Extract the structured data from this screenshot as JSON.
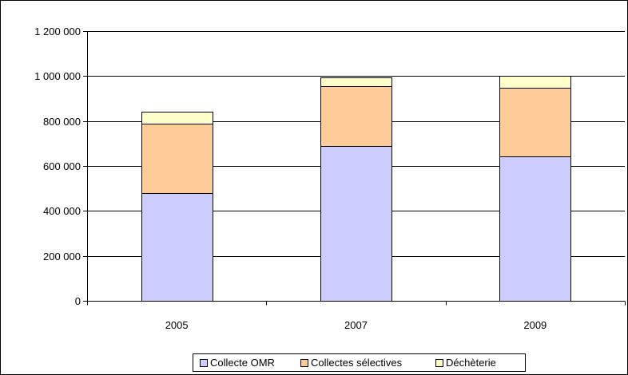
{
  "chart_data": {
    "type": "bar",
    "stacked": true,
    "categories": [
      "2005",
      "2007",
      "2009"
    ],
    "series": [
      {
        "name": "Collecte OMR",
        "color": "#ccccff",
        "values": [
          480000,
          690000,
          643000
        ]
      },
      {
        "name": "Collectes sélectives",
        "color": "#ffcc99",
        "values": [
          307000,
          265000,
          305000
        ]
      },
      {
        "name": "Déchèterie",
        "color": "#ffffcc",
        "values": [
          55000,
          40000,
          52000
        ]
      }
    ],
    "ylim": [
      0,
      1200000
    ],
    "y_ticks": [
      0,
      200000,
      400000,
      600000,
      800000,
      1000000,
      1200000
    ],
    "y_tick_labels": [
      "0",
      "200 000",
      "400 000",
      "600 000",
      "800 000",
      "1 000 000",
      "1 200 000"
    ],
    "grid": true,
    "legend_position": "bottom",
    "title": "",
    "xlabel": "",
    "ylabel": ""
  }
}
